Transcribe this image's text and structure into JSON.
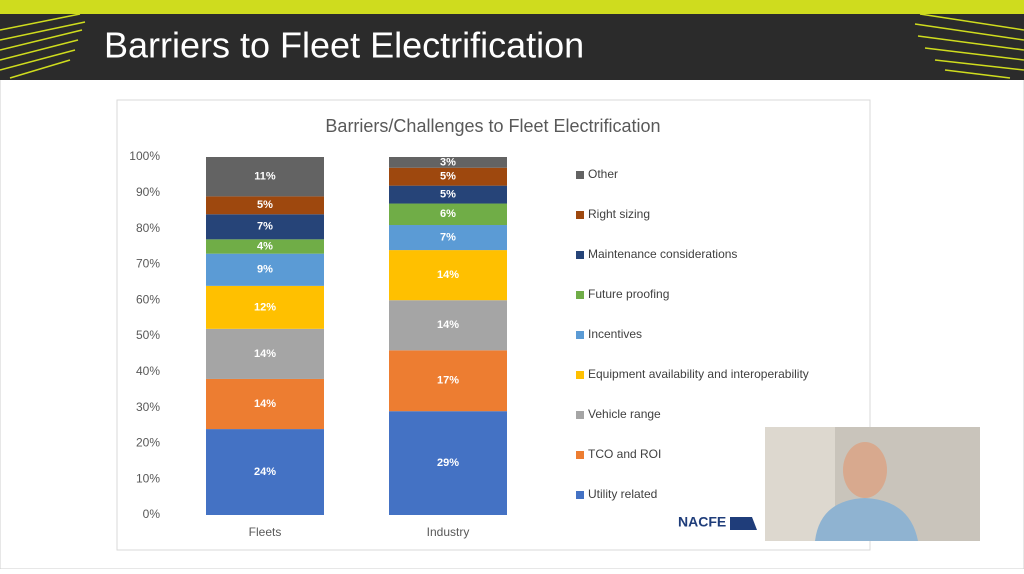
{
  "slide": {
    "title": "Barriers to Fleet Electrification",
    "logo": "NACFE"
  },
  "chart_data": {
    "type": "stacked-bar",
    "title": "Barriers/Challenges to Fleet Electrification",
    "categories": [
      "Fleets",
      "Industry"
    ],
    "series": [
      {
        "name": "Utility related",
        "color": "#4472c4",
        "values": [
          24,
          29
        ],
        "value_labels": [
          "24%",
          "29%"
        ]
      },
      {
        "name": "TCO and ROI",
        "color": "#ed7d31",
        "values": [
          14,
          17
        ],
        "value_labels": [
          "14%",
          "17%"
        ]
      },
      {
        "name": "Vehicle range",
        "color": "#a5a5a5",
        "values": [
          14,
          14
        ],
        "value_labels": [
          "14%",
          "14%"
        ]
      },
      {
        "name": "Equipment availability and interoperability",
        "color": "#ffc000",
        "values": [
          12,
          14
        ],
        "value_labels": [
          "12%",
          "14%"
        ]
      },
      {
        "name": "Incentives",
        "color": "#5b9bd5",
        "values": [
          9,
          7
        ],
        "value_labels": [
          "9%",
          "7%"
        ]
      },
      {
        "name": "Future proofing",
        "color": "#70ad47",
        "values": [
          4,
          6
        ],
        "value_labels": [
          "4%",
          "6%"
        ]
      },
      {
        "name": "Maintenance considerations",
        "color": "#264478",
        "values": [
          7,
          5
        ],
        "value_labels": [
          "7%",
          "5%"
        ]
      },
      {
        "name": "Right sizing",
        "color": "#9e480e",
        "values": [
          5,
          5
        ],
        "value_labels": [
          "5%",
          "5%"
        ]
      },
      {
        "name": "Other",
        "color": "#636363",
        "values": [
          11,
          3
        ],
        "value_labels": [
          "11%",
          "3%"
        ]
      }
    ],
    "ylim": [
      0,
      100
    ],
    "yticks": [
      {
        "value": 0,
        "label": "0%"
      },
      {
        "value": 10,
        "label": "10%"
      },
      {
        "value": 20,
        "label": "20%"
      },
      {
        "value": 30,
        "label": "30%"
      },
      {
        "value": 40,
        "label": "40%"
      },
      {
        "value": 50,
        "label": "50%"
      },
      {
        "value": 60,
        "label": "60%"
      },
      {
        "value": 70,
        "label": "70%"
      },
      {
        "value": 80,
        "label": "80%"
      },
      {
        "value": 90,
        "label": "90%"
      },
      {
        "value": 100,
        "label": "100%"
      }
    ],
    "grid": false,
    "legend": "right"
  }
}
